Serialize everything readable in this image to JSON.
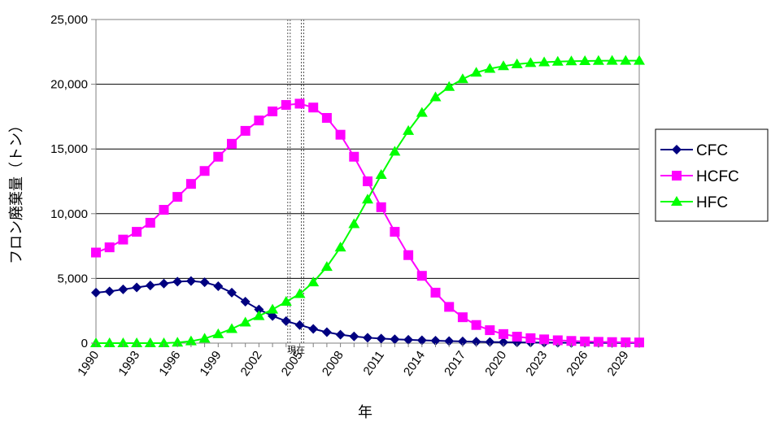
{
  "chart_data": {
    "type": "line",
    "title": "",
    "xlabel": "年",
    "ylabel": "フロン廃棄量（トン）",
    "x": [
      1990,
      1991,
      1992,
      1993,
      1994,
      1995,
      1996,
      1997,
      1998,
      1999,
      2000,
      2001,
      2002,
      2003,
      2004,
      2005,
      2006,
      2007,
      2008,
      2009,
      2010,
      2011,
      2012,
      2013,
      2014,
      2015,
      2016,
      2017,
      2018,
      2019,
      2020,
      2021,
      2022,
      2023,
      2024,
      2025,
      2026,
      2027,
      2028,
      2029,
      2030
    ],
    "xticks": [
      "1990",
      "1993",
      "1996",
      "1999",
      "2002",
      "2005",
      "2008",
      "2011",
      "2014",
      "2017",
      "2020",
      "2023",
      "2026",
      "2029"
    ],
    "ylim": [
      0,
      25000
    ],
    "yticks": [
      "0",
      "5,000",
      "10,000",
      "15,000",
      "20,000",
      "25,000"
    ],
    "grid": true,
    "legend_position": "right",
    "annotation": {
      "label": "現在",
      "x_range": [
        2004,
        2005
      ]
    },
    "series": [
      {
        "name": "CFC",
        "color": "#000080",
        "marker": "diamond",
        "values": [
          3900,
          4000,
          4150,
          4300,
          4450,
          4600,
          4750,
          4800,
          4700,
          4400,
          3900,
          3200,
          2600,
          2100,
          1700,
          1400,
          1100,
          850,
          650,
          520,
          420,
          350,
          300,
          260,
          220,
          190,
          160,
          130,
          110,
          90,
          70,
          55,
          45,
          38,
          32,
          27,
          23,
          20,
          17,
          15,
          13
        ]
      },
      {
        "name": "HCFC",
        "color": "#FF00FF",
        "marker": "square",
        "values": [
          7000,
          7400,
          8000,
          8600,
          9300,
          10300,
          11300,
          12300,
          13300,
          14400,
          15400,
          16400,
          17200,
          17900,
          18400,
          18500,
          18200,
          17400,
          16100,
          14400,
          12500,
          10500,
          8600,
          6800,
          5200,
          3900,
          2800,
          2000,
          1400,
          1000,
          700,
          500,
          380,
          290,
          220,
          170,
          130,
          100,
          80,
          60,
          50
        ]
      },
      {
        "name": "HFC",
        "color": "#00FF00",
        "marker": "triangle",
        "values": [
          0,
          0,
          0,
          0,
          0,
          0,
          50,
          150,
          350,
          700,
          1100,
          1600,
          2100,
          2600,
          3200,
          3800,
          4700,
          5900,
          7400,
          9200,
          11100,
          13000,
          14800,
          16400,
          17800,
          19000,
          19800,
          20400,
          20900,
          21200,
          21400,
          21550,
          21650,
          21700,
          21750,
          21780,
          21800,
          21810,
          21820,
          21820,
          21820
        ]
      }
    ]
  }
}
